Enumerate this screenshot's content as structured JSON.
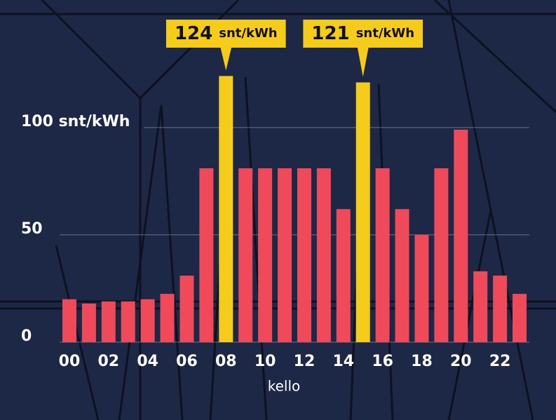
{
  "chart_data": {
    "type": "bar",
    "x_label": "kello",
    "categories": [
      "00",
      null,
      "02",
      null,
      "04",
      null,
      "06",
      null,
      "08",
      null,
      "10",
      null,
      "12",
      null,
      "14",
      null,
      "16",
      null,
      "18",
      null,
      "20",
      null,
      "22",
      null
    ],
    "values": [
      20,
      18,
      19,
      19,
      20,
      22.5,
      31,
      81,
      124,
      81,
      81,
      81,
      81,
      81,
      62,
      121,
      81,
      62,
      50,
      81,
      99,
      33,
      31,
      22.5
    ],
    "value_labels": [
      null,
      null,
      null,
      null,
      null,
      null,
      null,
      null,
      "124 snt/kWh",
      null,
      null,
      null,
      null,
      null,
      null,
      "121 snt/kWh",
      null,
      null,
      null,
      null,
      null,
      null,
      null,
      null
    ],
    "colors": [
      "#f04a5a",
      "#f04a5a",
      "#f04a5a",
      "#f04a5a",
      "#f04a5a",
      "#f04a5a",
      "#f04a5a",
      "#f04a5a",
      "#f5cc1a",
      "#f04a5a",
      "#f04a5a",
      "#f04a5a",
      "#f04a5a",
      "#f04a5a",
      "#f04a5a",
      "#f5cc1a",
      "#f04a5a",
      "#f04a5a",
      "#f04a5a",
      "#f04a5a",
      "#f04a5a",
      "#f04a5a",
      "#f04a5a",
      "#f04a5a"
    ],
    "ylim": [
      0,
      130
    ],
    "yticks": [
      0,
      50,
      {
        "value": 100,
        "label": "100 snt/kWh"
      }
    ],
    "grid": true
  }
}
